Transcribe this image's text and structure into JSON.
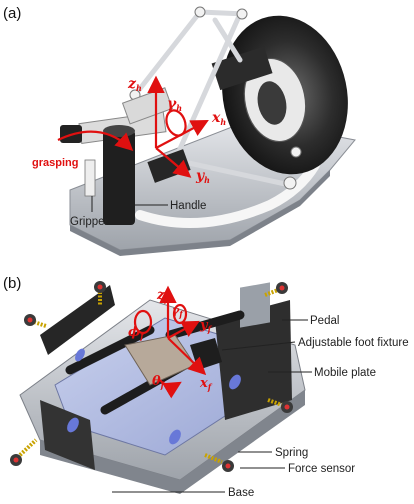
{
  "panel_a": {
    "label": "(a)",
    "axes": {
      "z": "z",
      "z_sub": "h",
      "x": "x",
      "x_sub": "h",
      "y": "y",
      "y_sub": "h",
      "gamma": "γ",
      "gamma_sub": "h"
    },
    "grasping_label": "grasping",
    "callouts": {
      "gripper": "Gripper",
      "handle": "Handle"
    }
  },
  "panel_b": {
    "label": "(b)",
    "axes": {
      "z": "z",
      "z_sub": "f",
      "x": "x",
      "x_sub": "f",
      "y": "y",
      "y_sub": "f",
      "phi": "ϕ",
      "phi_sub": "f",
      "gamma": "γ",
      "gamma_sub": "f",
      "theta": "θ",
      "theta_sub": "f"
    },
    "callouts": {
      "pedal": "Pedal",
      "foot_fixture": "Adjustable foot fixture",
      "mobile_plate": "Mobile plate",
      "spring": "Spring",
      "force_sensor": "Force sensor",
      "base": "Base"
    }
  },
  "colors": {
    "axis_red": "#e01010",
    "metal_dark": "#2a2a2a",
    "metal_light": "#cfd3db",
    "plate_blue": "#b9c3e6"
  }
}
